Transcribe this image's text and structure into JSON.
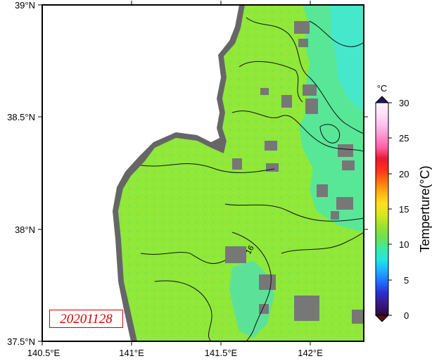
{
  "map": {
    "date_label": "20201128",
    "colors": {
      "sea_warm": "#8fe83a",
      "sea_mid": "#6fd84a",
      "sea_cool": "#4fe6a8",
      "sea_cold": "#45e8d0",
      "land": "#666666",
      "cloud_mask": "#777777",
      "background": "#ffffff"
    }
  },
  "axes": {
    "x_ticks": [
      "140.5°E",
      "141°E",
      "141.5°E",
      "142°E"
    ],
    "y_ticks": [
      "39°N",
      "38.5°N",
      "38°N",
      "37.5°N"
    ],
    "xlim": [
      140.5,
      142.3
    ],
    "ylim": [
      37.5,
      39.0
    ]
  },
  "contours": {
    "labels": [
      "16"
    ]
  },
  "colorbar": {
    "unit": "°C",
    "title": "Temperture(°C)",
    "ticks": [
      "30",
      "25",
      "20",
      "15",
      "10",
      "5",
      "0"
    ],
    "range": [
      0,
      30
    ],
    "stops": [
      "#2b0a3d",
      "#3a1880",
      "#2a2ed0",
      "#2070ff",
      "#20b0ff",
      "#20e8e0",
      "#40e8a0",
      "#70e050",
      "#a0e030",
      "#d8e820",
      "#ffe020",
      "#ffb010",
      "#ff7010",
      "#ff3020",
      "#e81830",
      "#ff60a0",
      "#ff90d0",
      "#ffc0ec",
      "#ffe0f8",
      "#fff4ff"
    ]
  }
}
